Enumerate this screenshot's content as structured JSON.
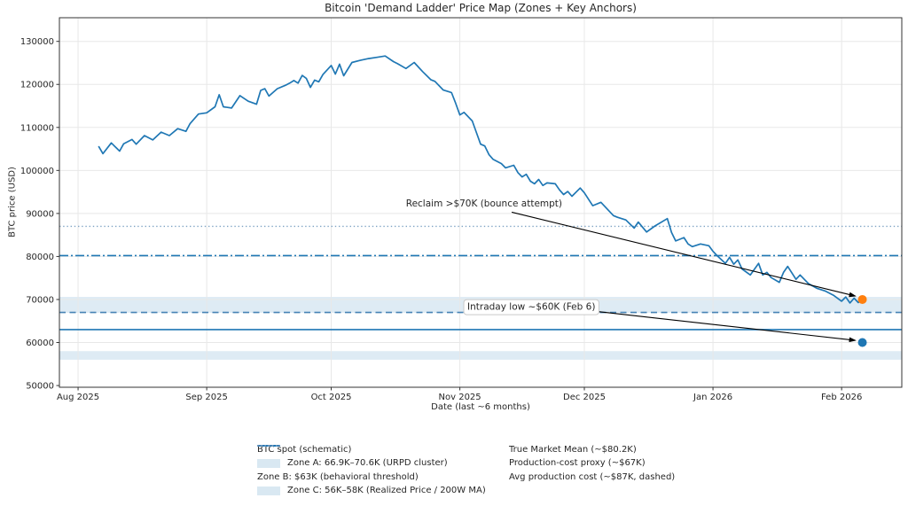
{
  "chart_data": {
    "type": "line",
    "title": "Bitcoin 'Demand Ladder' Price Map (Zones + Key Anchors)",
    "xlabel": "Date (last ~6 months)",
    "ylabel": "BTC price (USD)",
    "grid": true,
    "ylim": [
      49600,
      135500
    ],
    "yticks": [
      50000,
      60000,
      70000,
      80000,
      90000,
      100000,
      110000,
      120000,
      130000
    ],
    "xticks": [
      {
        "day": 0,
        "label": "Aug 2025"
      },
      {
        "day": 31,
        "label": "Sep 2025"
      },
      {
        "day": 61,
        "label": "Oct 2025"
      },
      {
        "day": 92,
        "label": "Nov 2025"
      },
      {
        "day": 122,
        "label": "Dec 2025"
      },
      {
        "day": 153,
        "label": "Jan 2026"
      },
      {
        "day": 184,
        "label": "Feb 2026"
      }
    ],
    "zones": [
      {
        "id": "zone-a",
        "label": "Zone A: 66.9K–70.6K (URPD cluster)",
        "from": 66900,
        "to": 70600,
        "color": "rgba(31,119,180,0.15)"
      },
      {
        "id": "zone-c",
        "label": "Zone C: 56K–58K (Realized Price / 200W MA)",
        "from": 56000,
        "to": 58000,
        "color": "rgba(31,119,180,0.15)"
      }
    ],
    "hlines": [
      {
        "id": "avg-production-cost",
        "label": "Avg production cost (~$87K, dashed)",
        "value": 87000,
        "style": "dotted",
        "color": "#7fa3c4",
        "width": 1.3
      },
      {
        "id": "true-market-mean",
        "label": "True Market Mean (~$80.2K)",
        "value": 80200,
        "style": "dashdot",
        "color": "#1f77b4",
        "width": 1.6
      },
      {
        "id": "production-cost-proxy",
        "label": "Production-cost proxy (~$67K)",
        "value": 67000,
        "style": "dashed",
        "color": "#4682b4",
        "width": 1.6
      },
      {
        "id": "zone-b",
        "label": "Zone B: $63K (behavioral threshold)",
        "value": 63000,
        "style": "solid",
        "color": "#1f77b4",
        "width": 1.7
      }
    ],
    "series": [
      {
        "id": "btc-spot",
        "name": "BTC spot (schematic)",
        "color": "#1f77b4",
        "width": 1.7,
        "points": [
          [
            5,
            105500
          ],
          [
            6,
            103900
          ],
          [
            8,
            106400
          ],
          [
            10,
            104500
          ],
          [
            11,
            106200
          ],
          [
            13,
            107200
          ],
          [
            14,
            106100
          ],
          [
            16,
            108100
          ],
          [
            18,
            107100
          ],
          [
            20,
            108900
          ],
          [
            22,
            108100
          ],
          [
            24,
            109700
          ],
          [
            26,
            109100
          ],
          [
            27,
            110900
          ],
          [
            28,
            112000
          ],
          [
            29,
            113100
          ],
          [
            31,
            113400
          ],
          [
            33,
            114800
          ],
          [
            34,
            117600
          ],
          [
            35,
            114800
          ],
          [
            37,
            114500
          ],
          [
            39,
            117400
          ],
          [
            41,
            116100
          ],
          [
            43,
            115400
          ],
          [
            44,
            118600
          ],
          [
            45,
            119000
          ],
          [
            46,
            117300
          ],
          [
            48,
            119000
          ],
          [
            50,
            119800
          ],
          [
            51,
            120300
          ],
          [
            52,
            120900
          ],
          [
            53,
            120300
          ],
          [
            54,
            122100
          ],
          [
            55,
            121400
          ],
          [
            56,
            119300
          ],
          [
            57,
            121000
          ],
          [
            58,
            120600
          ],
          [
            59,
            122300
          ],
          [
            61,
            124400
          ],
          [
            62,
            122400
          ],
          [
            63,
            124700
          ],
          [
            64,
            122000
          ],
          [
            66,
            125100
          ],
          [
            68,
            125600
          ],
          [
            70,
            126000
          ],
          [
            72,
            126300
          ],
          [
            74,
            126600
          ],
          [
            76,
            125300
          ],
          [
            77,
            124800
          ],
          [
            79,
            123700
          ],
          [
            81,
            125100
          ],
          [
            83,
            123000
          ],
          [
            85,
            121100
          ],
          [
            86,
            120700
          ],
          [
            88,
            118700
          ],
          [
            90,
            118100
          ],
          [
            91,
            115600
          ],
          [
            92,
            112900
          ],
          [
            93,
            113500
          ],
          [
            95,
            111500
          ],
          [
            96,
            108800
          ],
          [
            97,
            106100
          ],
          [
            98,
            105700
          ],
          [
            99,
            103700
          ],
          [
            100,
            102600
          ],
          [
            102,
            101600
          ],
          [
            103,
            100600
          ],
          [
            105,
            101200
          ],
          [
            106,
            99500
          ],
          [
            107,
            98500
          ],
          [
            108,
            99100
          ],
          [
            109,
            97500
          ],
          [
            110,
            96900
          ],
          [
            111,
            97900
          ],
          [
            112,
            96500
          ],
          [
            113,
            97100
          ],
          [
            115,
            96900
          ],
          [
            116,
            95500
          ],
          [
            117,
            94400
          ],
          [
            118,
            95100
          ],
          [
            119,
            94000
          ],
          [
            121,
            95900
          ],
          [
            122,
            94800
          ],
          [
            124,
            91800
          ],
          [
            126,
            92600
          ],
          [
            129,
            89500
          ],
          [
            130,
            89100
          ],
          [
            132,
            88500
          ],
          [
            134,
            86600
          ],
          [
            135,
            88000
          ],
          [
            137,
            85700
          ],
          [
            139,
            87100
          ],
          [
            142,
            88800
          ],
          [
            143,
            85600
          ],
          [
            144,
            83600
          ],
          [
            146,
            84400
          ],
          [
            147,
            82900
          ],
          [
            148,
            82300
          ],
          [
            150,
            82900
          ],
          [
            152,
            82500
          ],
          [
            153,
            81200
          ],
          [
            154,
            80200
          ],
          [
            156,
            78400
          ],
          [
            157,
            79800
          ],
          [
            158,
            78200
          ],
          [
            159,
            79200
          ],
          [
            160,
            77100
          ],
          [
            162,
            75700
          ],
          [
            164,
            78400
          ],
          [
            165,
            75700
          ],
          [
            166,
            76300
          ],
          [
            167,
            75100
          ],
          [
            169,
            74000
          ],
          [
            170,
            76300
          ],
          [
            171,
            77700
          ],
          [
            173,
            74700
          ],
          [
            174,
            75700
          ],
          [
            176,
            73700
          ],
          [
            178,
            72600
          ],
          [
            180,
            72000
          ],
          [
            182,
            71000
          ],
          [
            184,
            69600
          ],
          [
            185,
            70600
          ],
          [
            186,
            69200
          ],
          [
            187,
            70300
          ],
          [
            188,
            69300
          ],
          [
            189,
            70000
          ]
        ]
      }
    ],
    "annotations": [
      {
        "id": "reclaim-70k",
        "text": "Reclaim >$70K (bounce attempt)",
        "boxed": false,
        "text_day": 79,
        "text_price": 91600,
        "arrow_from": {
          "day": 104.5,
          "price": 90300
        },
        "arrow_to": {
          "day": 187.3,
          "price": 70800
        },
        "marker": {
          "day": 189,
          "price": 70000,
          "color": "#ff7f0e"
        }
      },
      {
        "id": "intraday-low-60k",
        "text": "Intraday low ~$60K (Feb 6)",
        "boxed": true,
        "text_day": 93.8,
        "text_price": 67600,
        "arrow_from": {
          "day": 125.2,
          "price": 67200
        },
        "arrow_to": {
          "day": 187.3,
          "price": 60500
        },
        "marker": {
          "day": 189,
          "price": 60000,
          "color": "#1f77b4"
        }
      }
    ],
    "legend": {
      "columns": [
        [
          {
            "swatch": "solid",
            "color": "#1f77b4",
            "label": "BTC spot (schematic)"
          },
          {
            "swatch": "patch",
            "color": "rgba(31,119,180,0.17)",
            "label": "Zone A: 66.9K–70.6K (URPD cluster)"
          },
          {
            "swatch": "solid",
            "color": "#1f77b4",
            "label": "Zone B: $63K (behavioral threshold)"
          },
          {
            "swatch": "patch",
            "color": "rgba(31,119,180,0.17)",
            "label": "Zone C: 56K–58K (Realized Price / 200W MA)"
          }
        ],
        [
          {
            "swatch": "dashdot",
            "color": "#1f77b4",
            "label": "True Market Mean (~$80.2K)"
          },
          {
            "swatch": "dashed",
            "color": "#4682b4",
            "label": "Production-cost proxy (~$67K)"
          },
          {
            "swatch": "dotted",
            "color": "#7fa3c4",
            "label": "Avg production cost (~$87K, dashed)"
          }
        ]
      ]
    },
    "colors": {
      "line_blue": "#1f77b4",
      "marker_orange": "#ff7f0e",
      "grid": "#e8e8e8",
      "spine": "#333333",
      "tick_text": "#262626"
    }
  }
}
